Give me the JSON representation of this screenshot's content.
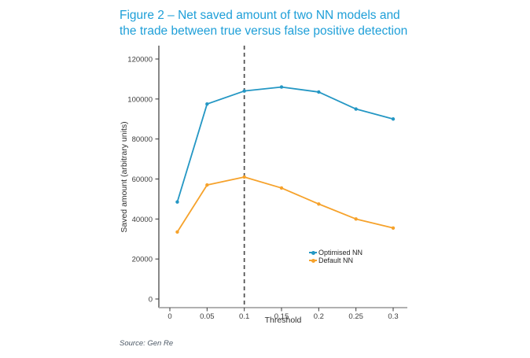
{
  "page": {
    "title_line1": "Figure 2 – Net saved amount of two NN models and",
    "title_line2": "the trade between true versus false positive detection",
    "title_color": "#1E9FD8",
    "source": "Source: Gen Re"
  },
  "chart_data": {
    "type": "line",
    "title": "Figure 2 – Net saved amount of two NN models and the trade between true versus false positive detection",
    "xlabel": "Threshold",
    "ylabel": "Saved amount (arbitrary units)",
    "x": [
      0.01,
      0.05,
      0.1,
      0.15,
      0.2,
      0.25,
      0.3
    ],
    "series": [
      {
        "name": "Optimised NN",
        "color": "#2497C4",
        "values": [
          48500,
          97500,
          104000,
          106000,
          103500,
          95000,
          90000
        ]
      },
      {
        "name": "Default NN",
        "color": "#F6A22B",
        "values": [
          33500,
          57000,
          61000,
          55500,
          47500,
          40000,
          35500
        ]
      }
    ],
    "x_ticks": [
      0,
      0.05,
      0.1,
      0.15,
      0.2,
      0.25,
      0.3
    ],
    "x_tick_labels": [
      "0",
      "0.05",
      "0.1",
      "0.15",
      "0.2",
      "0.25",
      "0.3"
    ],
    "y_ticks": [
      0,
      20000,
      40000,
      60000,
      80000,
      100000,
      120000
    ],
    "y_tick_labels": [
      "0",
      "20000",
      "40000",
      "60000",
      "80000",
      "100000",
      "120000"
    ],
    "xlim": [
      0,
      0.3
    ],
    "ylim": [
      0,
      120000
    ],
    "grid": false,
    "legend_position": "inside-right",
    "vline": {
      "x": 0.1,
      "style": "dashed",
      "color": "#4D4D4D"
    },
    "axis_colors": {
      "y_axis": "#3A3A3A",
      "x_axis_line": "#B0B0B0",
      "tick_text": "#3D3D3D"
    }
  }
}
